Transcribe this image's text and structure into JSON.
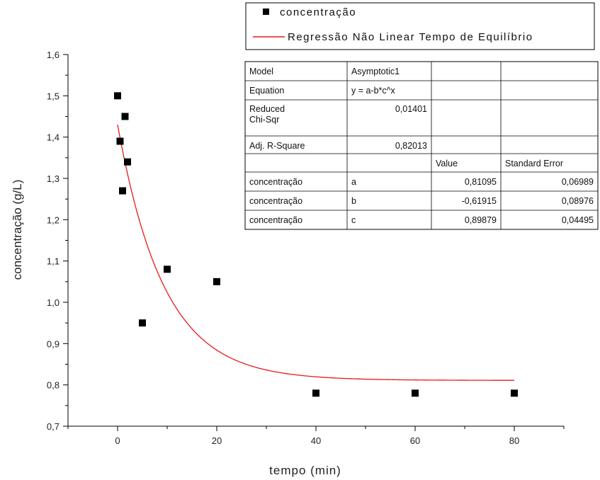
{
  "chart_data": {
    "type": "scatter",
    "xlabel": "tempo (min)",
    "ylabel": "concentração (g/L)",
    "xlim": [
      -10,
      90
    ],
    "ylim": [
      0.7,
      1.6
    ],
    "x_ticks": [
      0,
      20,
      40,
      60,
      80
    ],
    "y_ticks": [
      0.7,
      0.8,
      0.9,
      1.0,
      1.1,
      1.2,
      1.3,
      1.4,
      1.5,
      1.6
    ],
    "x_tick_labels": [
      "0",
      "20",
      "40",
      "60",
      "80"
    ],
    "y_tick_labels": [
      "0,7",
      "0,8",
      "0,9",
      "1,0",
      "1,1",
      "1,2",
      "1,3",
      "1,4",
      "1,5",
      "1,6"
    ],
    "grid": false,
    "legend_position": "top-right",
    "series": [
      {
        "name": "concentração",
        "kind": "scatter",
        "marker": "square",
        "color": "#000000",
        "x": [
          0,
          0.5,
          1,
          1.5,
          2,
          5,
          10,
          20,
          40,
          60,
          80
        ],
        "y": [
          1.5,
          1.39,
          1.27,
          1.45,
          1.34,
          0.95,
          1.08,
          1.05,
          0.78,
          0.78,
          0.78
        ]
      },
      {
        "name": "Regressão Não Linear Tempo de Equilíbrio",
        "kind": "line",
        "color": "#e8191c",
        "x_range": [
          0,
          80
        ],
        "model": {
          "a": 0.81095,
          "b": -0.61915,
          "c": 0.89879
        }
      }
    ],
    "stats_table": {
      "rows": [
        [
          "Model",
          "Asymptotic1",
          "",
          ""
        ],
        [
          "Equation",
          "y = a-b*c^x",
          "",
          ""
        ],
        [
          "Reduced\nChi-Sqr",
          "0,01401",
          "",
          ""
        ],
        [
          "Adj. R-Square",
          "0,82013",
          "",
          ""
        ],
        [
          "",
          "",
          "Value",
          "Standard Error"
        ],
        [
          "concentração",
          "a",
          "0,81095",
          "0,06989"
        ],
        [
          "concentração",
          "b",
          "-0,61915",
          "0,08976"
        ],
        [
          "concentração",
          "c",
          "0,89879",
          "0,04495"
        ]
      ]
    }
  }
}
